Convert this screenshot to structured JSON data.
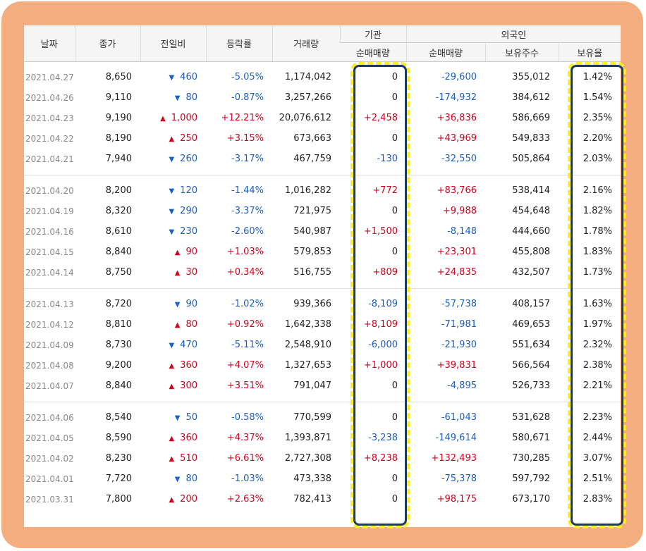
{
  "headers": {
    "date": "날짜",
    "close": "종가",
    "change": "전일비",
    "rate": "등락률",
    "volume": "거래량",
    "inst_group": "기관",
    "inst_net": "순매매량",
    "foreign_group": "외국인",
    "foreign_net": "순매매량",
    "foreign_hold": "보유주수",
    "foreign_ratio": "보유율"
  },
  "colors": {
    "up": "#d6001c",
    "down": "#1a5fc4",
    "frame": "#f4ad7f",
    "highlight_dash": "#fcee21",
    "highlight_outline": "#1d3b5c"
  },
  "icons": {
    "up": "▲",
    "down": "▼"
  },
  "groups": [
    [
      {
        "date": "2021.04.27",
        "close": "8,650",
        "dir": "down",
        "change": "460",
        "rate": "-5.05%",
        "volume": "1,174,042",
        "inst": "0",
        "foreign": "-29,600",
        "hold": "355,012",
        "ratio": "1.42%"
      },
      {
        "date": "2021.04.26",
        "close": "9,110",
        "dir": "down",
        "change": "80",
        "rate": "-0.87%",
        "volume": "3,257,266",
        "inst": "0",
        "foreign": "-174,932",
        "hold": "384,612",
        "ratio": "1.54%"
      },
      {
        "date": "2021.04.23",
        "close": "9,190",
        "dir": "up",
        "change": "1,000",
        "rate": "+12.21%",
        "volume": "20,076,612",
        "inst": "+2,458",
        "foreign": "+36,836",
        "hold": "586,669",
        "ratio": "2.35%"
      },
      {
        "date": "2021.04.22",
        "close": "8,190",
        "dir": "up",
        "change": "250",
        "rate": "+3.15%",
        "volume": "673,663",
        "inst": "0",
        "foreign": "+43,969",
        "hold": "549,833",
        "ratio": "2.20%"
      },
      {
        "date": "2021.04.21",
        "close": "7,940",
        "dir": "down",
        "change": "260",
        "rate": "-3.17%",
        "volume": "467,759",
        "inst": "-130",
        "foreign": "-32,550",
        "hold": "505,864",
        "ratio": "2.03%"
      }
    ],
    [
      {
        "date": "2021.04.20",
        "close": "8,200",
        "dir": "down",
        "change": "120",
        "rate": "-1.44%",
        "volume": "1,016,282",
        "inst": "+772",
        "foreign": "+83,766",
        "hold": "538,414",
        "ratio": "2.16%"
      },
      {
        "date": "2021.04.19",
        "close": "8,320",
        "dir": "down",
        "change": "290",
        "rate": "-3.37%",
        "volume": "721,975",
        "inst": "0",
        "foreign": "+9,988",
        "hold": "454,648",
        "ratio": "1.82%"
      },
      {
        "date": "2021.04.16",
        "close": "8,610",
        "dir": "down",
        "change": "230",
        "rate": "-2.60%",
        "volume": "540,987",
        "inst": "+1,500",
        "foreign": "-8,148",
        "hold": "444,660",
        "ratio": "1.78%"
      },
      {
        "date": "2021.04.15",
        "close": "8,840",
        "dir": "up",
        "change": "90",
        "rate": "+1.03%",
        "volume": "579,853",
        "inst": "0",
        "foreign": "+23,301",
        "hold": "455,808",
        "ratio": "1.83%"
      },
      {
        "date": "2021.04.14",
        "close": "8,750",
        "dir": "up",
        "change": "30",
        "rate": "+0.34%",
        "volume": "516,755",
        "inst": "+809",
        "foreign": "+24,835",
        "hold": "432,507",
        "ratio": "1.73%"
      }
    ],
    [
      {
        "date": "2021.04.13",
        "close": "8,720",
        "dir": "down",
        "change": "90",
        "rate": "-1.02%",
        "volume": "939,366",
        "inst": "-8,109",
        "foreign": "-57,738",
        "hold": "408,157",
        "ratio": "1.63%"
      },
      {
        "date": "2021.04.12",
        "close": "8,810",
        "dir": "up",
        "change": "80",
        "rate": "+0.92%",
        "volume": "1,642,338",
        "inst": "+8,109",
        "foreign": "-71,981",
        "hold": "469,653",
        "ratio": "1.97%"
      },
      {
        "date": "2021.04.09",
        "close": "8,730",
        "dir": "down",
        "change": "470",
        "rate": "-5.11%",
        "volume": "2,548,910",
        "inst": "-6,000",
        "foreign": "-21,930",
        "hold": "551,634",
        "ratio": "2.32%"
      },
      {
        "date": "2021.04.08",
        "close": "9,200",
        "dir": "up",
        "change": "360",
        "rate": "+4.07%",
        "volume": "1,327,653",
        "inst": "+1,000",
        "foreign": "+39,831",
        "hold": "566,564",
        "ratio": "2.38%"
      },
      {
        "date": "2021.04.07",
        "close": "8,840",
        "dir": "up",
        "change": "300",
        "rate": "+3.51%",
        "volume": "791,047",
        "inst": "0",
        "foreign": "-4,895",
        "hold": "526,733",
        "ratio": "2.21%"
      }
    ],
    [
      {
        "date": "2021.04.06",
        "close": "8,540",
        "dir": "down",
        "change": "50",
        "rate": "-0.58%",
        "volume": "770,599",
        "inst": "0",
        "foreign": "-61,043",
        "hold": "531,628",
        "ratio": "2.23%"
      },
      {
        "date": "2021.04.05",
        "close": "8,590",
        "dir": "up",
        "change": "360",
        "rate": "+4.37%",
        "volume": "1,393,871",
        "inst": "-3,238",
        "foreign": "-149,614",
        "hold": "580,671",
        "ratio": "2.44%"
      },
      {
        "date": "2021.04.02",
        "close": "8,230",
        "dir": "up",
        "change": "510",
        "rate": "+6.61%",
        "volume": "2,727,308",
        "inst": "+8,238",
        "foreign": "+132,493",
        "hold": "730,285",
        "ratio": "3.07%"
      },
      {
        "date": "2021.04.01",
        "close": "7,720",
        "dir": "down",
        "change": "80",
        "rate": "-1.03%",
        "volume": "473,338",
        "inst": "0",
        "foreign": "-75,378",
        "hold": "597,792",
        "ratio": "2.51%"
      },
      {
        "date": "2021.03.31",
        "close": "7,800",
        "dir": "up",
        "change": "200",
        "rate": "+2.63%",
        "volume": "782,413",
        "inst": "0",
        "foreign": "+98,175",
        "hold": "673,170",
        "ratio": "2.83%"
      }
    ]
  ]
}
